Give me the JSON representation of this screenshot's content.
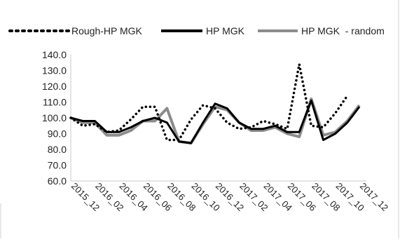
{
  "chart_data": {
    "type": "line",
    "title": "",
    "xlabel": "",
    "ylabel": "",
    "ylim": [
      60,
      140
    ],
    "yticks": [
      "140.0",
      "130.0",
      "120.0",
      "110.0",
      "100.0",
      "90.0",
      "80.0",
      "70.0",
      "60.0"
    ],
    "grid": false,
    "legend_position": "top",
    "x": [
      "2015_12",
      "2016_01",
      "2016_02",
      "2016_03",
      "2016_04",
      "2016_05",
      "2016_06",
      "2016_07",
      "2016_08",
      "2016_09",
      "2016_10",
      "2016_11",
      "2016_12",
      "2017_01",
      "2017_02",
      "2017_03",
      "2017_04",
      "2017_05",
      "2017_06",
      "2017_07",
      "2017_08",
      "2017_09",
      "2017_10",
      "2017_11",
      "2017_12"
    ],
    "tick_labels": [
      "2015_12",
      "2016_02",
      "2016_04",
      "2016_06",
      "2016_08",
      "2016_10",
      "2016_12",
      "2017_02",
      "2017_04",
      "2017_06",
      "2017_08",
      "2017_10",
      "2017_12"
    ],
    "series": [
      {
        "name": "Rough-HP MGK",
        "style": "dotted",
        "color": "#000000",
        "values": [
          100,
          95,
          96,
          91,
          92,
          99,
          107,
          107,
          86,
          86,
          99,
          108,
          106,
          97,
          93,
          94,
          98,
          96,
          93,
          134,
          95,
          94,
          103,
          114,
          null
        ]
      },
      {
        "name": "HP MGK",
        "style": "solid",
        "color": "#000000",
        "values": [
          100,
          98,
          98,
          91,
          91,
          94,
          98,
          100,
          97,
          85,
          84,
          97,
          109,
          106,
          97,
          93,
          93,
          95,
          91,
          91,
          111,
          86,
          90,
          97,
          107
        ]
      },
      {
        "name": "HP MGK  - random",
        "style": "solid",
        "color": "#8c8c8c",
        "values": [
          100,
          97,
          97,
          89,
          89,
          92,
          98,
          98,
          106,
          85,
          84,
          96,
          107,
          105,
          97,
          92,
          92,
          94,
          90,
          88,
          112,
          89,
          91,
          98,
          108
        ]
      }
    ]
  }
}
